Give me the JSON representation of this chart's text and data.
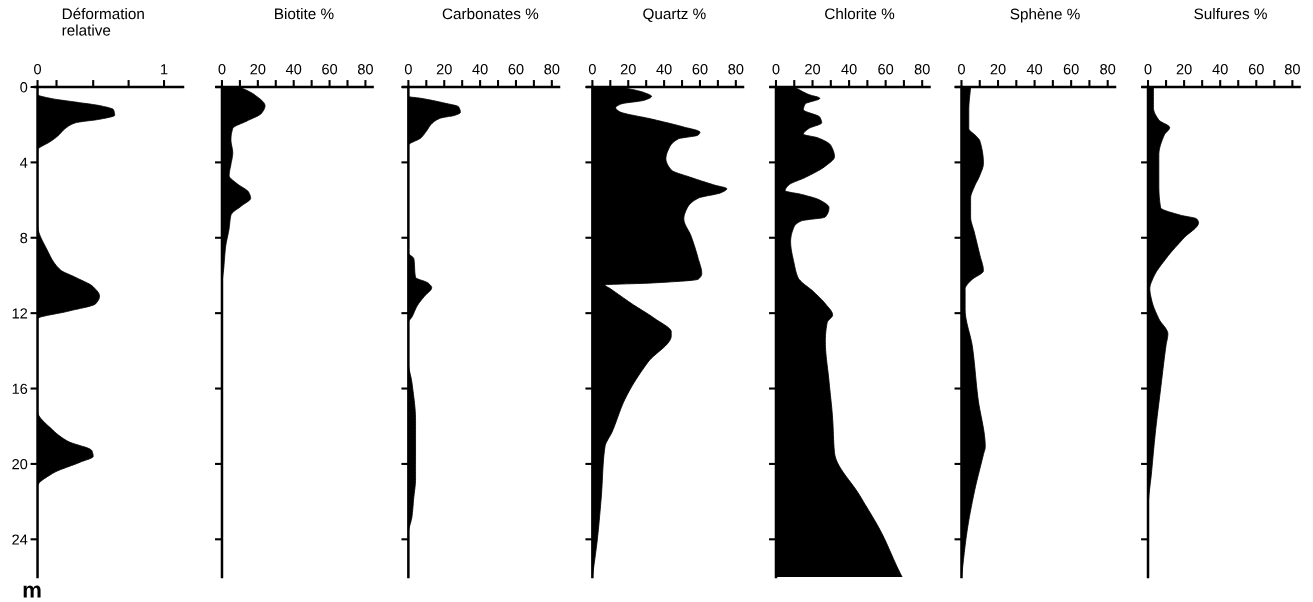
{
  "chart_data": [
    {
      "type": "area",
      "orientation": "horizontal",
      "title": "Déformation\nrelative",
      "ylabel": "m",
      "color": "#000000",
      "xlim": [
        -0.02,
        1.15
      ],
      "xticks": [
        0,
        {
          "value": 0.15,
          "label": null
        },
        {
          "value": 0.44,
          "label": null
        },
        {
          "value": 0.72,
          "label": null
        },
        1
      ],
      "ylim": [
        26,
        0
      ],
      "yticks": [
        0,
        4,
        8,
        12,
        16,
        20,
        24
      ],
      "x": [
        0,
        0.4,
        0.6,
        0.8,
        1.0,
        1.2,
        1.5,
        1.7,
        1.9,
        2.2,
        2.6,
        2.9,
        3.2,
        3.3,
        7.3,
        8.7,
        9.7,
        10.1,
        10.6,
        11.1,
        11.5,
        11.9,
        12.3,
        17.2,
        18.2,
        18.8,
        19.3,
        19.6,
        19.9,
        20.5,
        21.2,
        26
      ],
      "values": [
        0,
        0,
        0.1,
        0.3,
        0.5,
        0.6,
        0.61,
        0.5,
        0.3,
        0.22,
        0.16,
        0.1,
        0.02,
        0,
        0,
        0.08,
        0.18,
        0.3,
        0.44,
        0.49,
        0.46,
        0.24,
        0,
        0,
        0.12,
        0.24,
        0.43,
        0.44,
        0.34,
        0.12,
        0,
        0
      ]
    },
    {
      "type": "area",
      "orientation": "horizontal",
      "title": "Biotite %",
      "color": "#000000",
      "tick_labels": "x",
      "xlim": [
        -3,
        84
      ],
      "xticks": [
        0,
        {
          "value": 10,
          "label": null
        },
        20,
        {
          "value": 30,
          "label": null
        },
        40,
        {
          "value": 50,
          "label": null
        },
        60,
        {
          "value": 70,
          "label": null
        },
        80
      ],
      "ylim": [
        26,
        0
      ],
      "yticks": [
        0,
        4,
        8,
        12,
        16,
        20,
        24
      ],
      "x": [
        0,
        0.4,
        1.0,
        1.4,
        1.8,
        2.2,
        2.8,
        3.5,
        4.1,
        4.7,
        5.1,
        5.6,
        5.9,
        6.3,
        6.8,
        7.5,
        8.5,
        9.6,
        10.6,
        26
      ],
      "values": [
        10,
        18,
        24,
        22,
        14,
        6,
        5,
        6,
        5,
        4,
        8,
        15,
        16,
        11,
        5,
        4,
        2,
        1,
        0,
        0
      ]
    },
    {
      "type": "area",
      "orientation": "horizontal",
      "title": "Carbonates %",
      "color": "#000000",
      "tick_labels": "x",
      "xlim": [
        -3,
        84
      ],
      "xticks": [
        0,
        {
          "value": 10,
          "label": null
        },
        20,
        {
          "value": 30,
          "label": null
        },
        40,
        {
          "value": 50,
          "label": null
        },
        60,
        {
          "value": 70,
          "label": null
        },
        80
      ],
      "ylim": [
        26,
        0
      ],
      "yticks": [
        0,
        4,
        8,
        12,
        16,
        20,
        24
      ],
      "x": [
        0,
        0.5,
        0.6,
        0.85,
        1.05,
        1.35,
        1.5,
        1.65,
        1.95,
        2.35,
        2.7,
        3.1,
        8.8,
        9.1,
        10.1,
        10.4,
        10.65,
        11.1,
        11.6,
        12.2,
        12.5,
        14.6,
        15.7,
        17.7,
        19.8,
        20.8,
        21.8,
        22.8,
        23.7,
        26
      ],
      "values": [
        0,
        0,
        7,
        20,
        28,
        29,
        26,
        18,
        13,
        10,
        7,
        0,
        0,
        3,
        4,
        11,
        13,
        9,
        5,
        2,
        0,
        0,
        2,
        4,
        4,
        4,
        3,
        2,
        0,
        0
      ]
    },
    {
      "type": "area",
      "orientation": "horizontal",
      "title": "Quartz %",
      "color": "#000000",
      "tick_labels": "x",
      "xlim": [
        -3,
        84
      ],
      "xticks": [
        0,
        {
          "value": 10,
          "label": null
        },
        20,
        {
          "value": 30,
          "label": null
        },
        40,
        {
          "value": 50,
          "label": null
        },
        60,
        {
          "value": 70,
          "label": null
        },
        80
      ],
      "ylim": [
        26,
        0
      ],
      "yticks": [
        0,
        4,
        8,
        12,
        16,
        20,
        24
      ],
      "x": [
        0,
        0.3,
        0.5,
        0.7,
        0.9,
        1.1,
        1.3,
        1.7,
        2.1,
        2.4,
        2.55,
        2.75,
        3.2,
        3.8,
        4.4,
        4.8,
        5.2,
        5.4,
        5.6,
        5.9,
        6.4,
        7.0,
        7.9,
        9.1,
        9.9,
        10.2,
        10.4,
        10.5,
        10.7,
        11.5,
        12.3,
        13.0,
        13.2,
        14.6,
        16.6,
        18.3,
        19.1,
        21.7,
        23.8,
        26
      ],
      "values": [
        16,
        29,
        33,
        29,
        16,
        13,
        15,
        33,
        50,
        60,
        59,
        48,
        43,
        41,
        44,
        55,
        68,
        75,
        72,
        59,
        53,
        51,
        55,
        59,
        61,
        59,
        33,
        7,
        10,
        22,
        35,
        44,
        44,
        31,
        18,
        11,
        7,
        5,
        3,
        0
      ]
    },
    {
      "type": "area",
      "orientation": "horizontal",
      "title": "Chlorite %",
      "color": "#000000",
      "tick_labels": "x",
      "xlim": [
        -3,
        84
      ],
      "xticks": [
        0,
        {
          "value": 10,
          "label": null
        },
        20,
        {
          "value": 30,
          "label": null
        },
        40,
        {
          "value": 50,
          "label": null
        },
        60,
        {
          "value": 70,
          "label": null
        },
        80
      ],
      "ylim": [
        26,
        0
      ],
      "yticks": [
        0,
        4,
        8,
        12,
        16,
        20,
        24
      ],
      "x": [
        0,
        0.4,
        0.6,
        0.9,
        1.2,
        1.6,
        1.9,
        2.2,
        2.5,
        2.7,
        3.1,
        3.7,
        4.2,
        4.8,
        5.2,
        5.5,
        5.7,
        6.0,
        6.4,
        6.9,
        7.1,
        7.4,
        8.2,
        9.4,
        10.1,
        10.9,
        11.5,
        12.1,
        12.5,
        13.5,
        15.6,
        17.6,
        19.4,
        21.7,
        23.7,
        25.4,
        26
      ],
      "values": [
        10,
        18,
        24,
        16,
        15,
        24,
        25,
        18,
        15,
        23,
        30,
        32,
        27,
        16,
        7,
        5,
        14,
        24,
        29,
        27,
        14,
        10,
        8,
        10,
        12,
        21,
        27,
        31,
        28,
        27,
        29,
        31,
        32,
        46,
        58,
        66,
        69
      ]
    },
    {
      "type": "area",
      "orientation": "horizontal",
      "title": "Sphène %",
      "color": "#000000",
      "tick_labels": "x",
      "xlim": [
        -3,
        84
      ],
      "xticks": [
        0,
        {
          "value": 10,
          "label": null
        },
        20,
        {
          "value": 30,
          "label": null
        },
        40,
        {
          "value": 50,
          "label": null
        },
        60,
        {
          "value": 70,
          "label": null
        },
        80
      ],
      "ylim": [
        26,
        0
      ],
      "yticks": [
        0,
        4,
        8,
        12,
        16,
        20,
        24
      ],
      "x": [
        0,
        1.2,
        2.2,
        2.6,
        2.85,
        4.05,
        4.7,
        5.3,
        5.9,
        6.9,
        7.7,
        8.9,
        9.75,
        10.2,
        10.5,
        10.7,
        11.8,
        13.8,
        16.5,
        19.1,
        19.5,
        21.5,
        23.6,
        26
      ],
      "values": [
        5,
        4,
        4,
        8,
        10,
        12,
        10,
        7,
        5,
        5,
        7,
        10,
        12,
        6,
        3,
        2,
        2,
        6,
        9,
        13,
        12,
        7,
        3,
        0
      ]
    },
    {
      "type": "area",
      "orientation": "horizontal",
      "title": "Sulfures %",
      "color": "#000000",
      "tick_labels": "x",
      "xlim": [
        -3,
        84
      ],
      "xticks": [
        0,
        {
          "value": 10,
          "label": null
        },
        20,
        {
          "value": 30,
          "label": null
        },
        40,
        {
          "value": 50,
          "label": null
        },
        60,
        {
          "value": 70,
          "label": null
        },
        80
      ],
      "ylim": [
        26,
        0
      ],
      "yticks": [
        0,
        4,
        8,
        12,
        16,
        20,
        24
      ],
      "x": [
        0,
        1.1,
        1.75,
        2.15,
        2.55,
        3.6,
        5.2,
        6.4,
        6.8,
        7.0,
        7.2,
        8.0,
        9.1,
        10.1,
        10.7,
        11.3,
        12.3,
        13.1,
        13.7,
        16.0,
        18.4,
        20.4,
        22.5,
        26
      ],
      "values": [
        3,
        3,
        6,
        12,
        9,
        6,
        6,
        7,
        18,
        27,
        28,
        20,
        10,
        3,
        1,
        2,
        6,
        11,
        10,
        7,
        4,
        2,
        0,
        0
      ]
    }
  ]
}
